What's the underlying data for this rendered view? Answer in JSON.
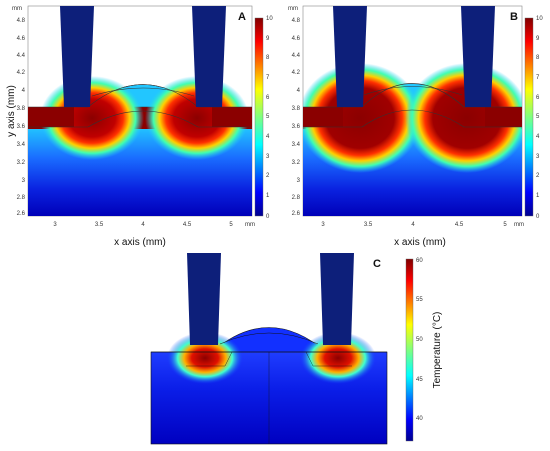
{
  "panels": [
    {
      "label": "A",
      "xlabel": "x axis (mm)",
      "ylabel": "y axis (mm)",
      "x_ticks": [
        "3",
        "3.5",
        "4",
        "4.5",
        "5"
      ],
      "y_ticks": [
        "4.8",
        "4.6",
        "4.4",
        "4.2",
        "4",
        "3.8",
        "3.6",
        "3.4",
        "3.2",
        "3",
        "2.8",
        "2.6"
      ],
      "x_unit": "mm",
      "y_unit": "mm",
      "colorbar_ticks": [
        "10",
        "9",
        "8",
        "7",
        "6",
        "5",
        "4",
        "3",
        "2",
        "1",
        "0"
      ]
    },
    {
      "label": "B",
      "xlabel": "x axis (mm)",
      "ylabel": "",
      "x_ticks": [
        "3",
        "3.5",
        "4",
        "4.5",
        "5"
      ],
      "y_ticks": [
        "4.8",
        "4.6",
        "4.4",
        "4.2",
        "4",
        "3.8",
        "3.6",
        "3.4",
        "3.2",
        "3",
        "2.8",
        "2.6"
      ],
      "x_unit": "mm",
      "y_unit": "mm",
      "colorbar_ticks": [
        "10",
        "9",
        "8",
        "7",
        "6",
        "5",
        "4",
        "3",
        "2",
        "1",
        "0"
      ]
    },
    {
      "label": "C",
      "colorbar_ticks": [
        "60",
        "55",
        "50",
        "45",
        "40"
      ],
      "colorbar_label": "Temperature (°C)"
    }
  ],
  "colors": {
    "electrode": "#0d1f7a",
    "hot": "#8b0000",
    "cold": "#00008b"
  }
}
